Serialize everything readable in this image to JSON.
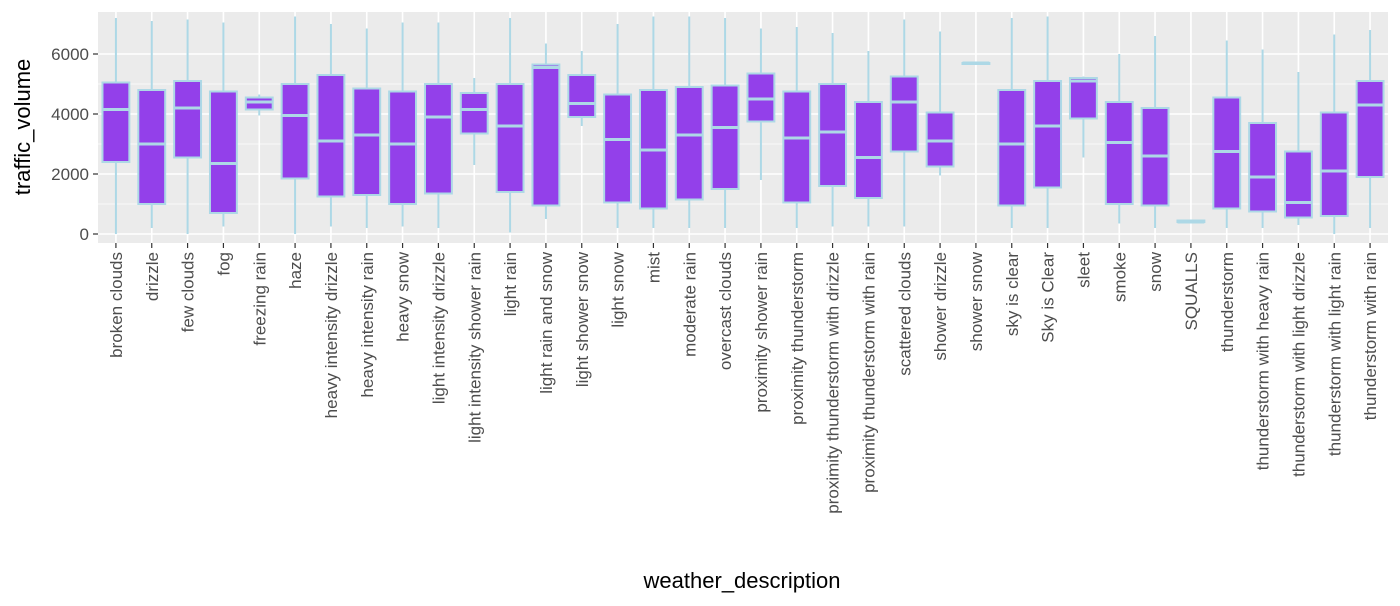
{
  "chart_data": {
    "type": "boxplot",
    "xlabel": "weather_description",
    "ylabel": "traffic_volume",
    "ylim": [
      -300,
      7400
    ],
    "yticks": [
      0,
      2000,
      4000,
      6000
    ],
    "grid": true,
    "colors": {
      "box_fill": "#9340EA",
      "box_stroke": "#ADD8E6",
      "panel": "#EBEBEB",
      "grid": "#FFFFFF"
    },
    "categories": [
      "broken clouds",
      "drizzle",
      "few clouds",
      "fog",
      "freezing rain",
      "haze",
      "heavy intensity drizzle",
      "heavy intensity rain",
      "heavy snow",
      "light intensity drizzle",
      "light intensity shower rain",
      "light rain",
      "light rain and snow",
      "light shower snow",
      "light snow",
      "mist",
      "moderate rain",
      "overcast clouds",
      "proximity shower rain",
      "proximity thunderstorm",
      "proximity thunderstorm with drizzle",
      "proximity thunderstorm with rain",
      "scattered clouds",
      "shower drizzle",
      "shower snow",
      "sky is clear",
      "Sky is Clear",
      "sleet",
      "smoke",
      "snow",
      "SQUALLS",
      "thunderstorm",
      "thunderstorm with heavy rain",
      "thunderstorm with light drizzle",
      "thunderstorm with light rain",
      "thunderstorm with rain"
    ],
    "boxes": [
      {
        "min": 0,
        "q1": 2400,
        "median": 4150,
        "q3": 5050,
        "max": 7200
      },
      {
        "min": 200,
        "q1": 1000,
        "median": 3000,
        "q3": 4800,
        "max": 7100
      },
      {
        "min": 0,
        "q1": 2550,
        "median": 4200,
        "q3": 5100,
        "max": 7150
      },
      {
        "min": 250,
        "q1": 700,
        "median": 2350,
        "q3": 4750,
        "max": 7050
      },
      {
        "min": 3950,
        "q1": 4150,
        "median": 4400,
        "q3": 4550,
        "max": 4650
      },
      {
        "min": 0,
        "q1": 1850,
        "median": 3950,
        "q3": 5000,
        "max": 7250
      },
      {
        "min": 250,
        "q1": 1250,
        "median": 3100,
        "q3": 5300,
        "max": 7000
      },
      {
        "min": 200,
        "q1": 1300,
        "median": 3300,
        "q3": 4850,
        "max": 6850
      },
      {
        "min": 250,
        "q1": 1000,
        "median": 3000,
        "q3": 4750,
        "max": 7050
      },
      {
        "min": 200,
        "q1": 1350,
        "median": 3900,
        "q3": 5000,
        "max": 7050
      },
      {
        "min": 2300,
        "q1": 3350,
        "median": 4150,
        "q3": 4700,
        "max": 5200
      },
      {
        "min": 50,
        "q1": 1400,
        "median": 3600,
        "q3": 5000,
        "max": 7200
      },
      {
        "min": 500,
        "q1": 950,
        "median": 5550,
        "q3": 5650,
        "max": 6350
      },
      {
        "min": 3600,
        "q1": 3900,
        "median": 4350,
        "q3": 5300,
        "max": 6100
      },
      {
        "min": 200,
        "q1": 1050,
        "median": 3150,
        "q3": 4650,
        "max": 7000
      },
      {
        "min": 200,
        "q1": 850,
        "median": 2800,
        "q3": 4800,
        "max": 7250
      },
      {
        "min": 200,
        "q1": 1150,
        "median": 3300,
        "q3": 4900,
        "max": 7250
      },
      {
        "min": 200,
        "q1": 1500,
        "median": 3550,
        "q3": 4950,
        "max": 7200
      },
      {
        "min": 1800,
        "q1": 3750,
        "median": 4500,
        "q3": 5350,
        "max": 6850
      },
      {
        "min": 200,
        "q1": 1050,
        "median": 3200,
        "q3": 4750,
        "max": 6900
      },
      {
        "min": 250,
        "q1": 1600,
        "median": 3400,
        "q3": 5000,
        "max": 6700
      },
      {
        "min": 250,
        "q1": 1200,
        "median": 2550,
        "q3": 4400,
        "max": 6100
      },
      {
        "min": 250,
        "q1": 2750,
        "median": 4400,
        "q3": 5250,
        "max": 7150
      },
      {
        "min": 1950,
        "q1": 2250,
        "median": 3100,
        "q3": 4050,
        "max": 6750
      },
      {
        "min": 5700,
        "q1": 5700,
        "median": 5700,
        "q3": 5700,
        "max": 5700
      },
      {
        "min": 200,
        "q1": 950,
        "median": 3000,
        "q3": 4800,
        "max": 7200
      },
      {
        "min": 200,
        "q1": 1550,
        "median": 3600,
        "q3": 5100,
        "max": 7250
      },
      {
        "min": 2550,
        "q1": 3850,
        "median": 5100,
        "q3": 5200,
        "max": 5250
      },
      {
        "min": 350,
        "q1": 1000,
        "median": 3050,
        "q3": 4400,
        "max": 6000
      },
      {
        "min": 200,
        "q1": 950,
        "median": 2600,
        "q3": 4200,
        "max": 6600
      },
      {
        "min": 400,
        "q1": 400,
        "median": 400,
        "q3": 450,
        "max": 450
      },
      {
        "min": 200,
        "q1": 850,
        "median": 2750,
        "q3": 4550,
        "max": 6450
      },
      {
        "min": 200,
        "q1": 750,
        "median": 1900,
        "q3": 3700,
        "max": 6150
      },
      {
        "min": 300,
        "q1": 550,
        "median": 1050,
        "q3": 2750,
        "max": 5400
      },
      {
        "min": 0,
        "q1": 600,
        "median": 2100,
        "q3": 4050,
        "max": 6650
      },
      {
        "min": 200,
        "q1": 1900,
        "median": 4300,
        "q3": 5100,
        "max": 6800
      }
    ]
  }
}
